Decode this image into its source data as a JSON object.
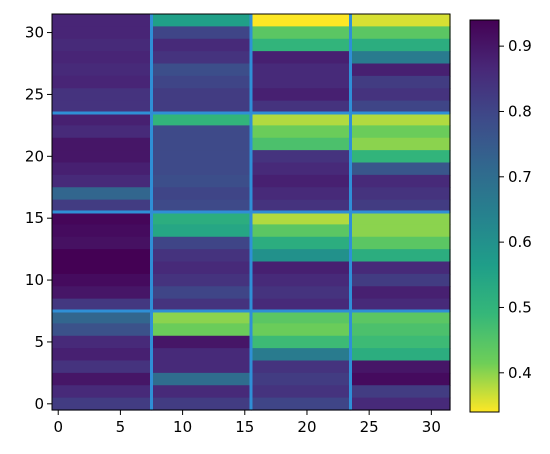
{
  "chart_data": {
    "type": "heatmap",
    "colormap": "viridis_r",
    "nrows": 32,
    "ncols": 32,
    "block_boundaries": [
      0,
      8,
      16,
      24,
      32
    ],
    "grid_lines": true,
    "grid_line_color": "#2f8fd6",
    "xlim": [
      -0.5,
      31.5
    ],
    "ylim": [
      31.5,
      -0.5
    ],
    "xticks": [
      0,
      5,
      10,
      15,
      20,
      25,
      30
    ],
    "yticks": [
      0,
      5,
      10,
      15,
      20,
      25,
      30
    ],
    "xtick_labels": [
      "0",
      "5",
      "10",
      "15",
      "20",
      "25",
      "30"
    ],
    "ytick_labels": [
      "0",
      "5",
      "10",
      "15",
      "20",
      "25",
      "30"
    ],
    "colorbar": {
      "range": [
        0.34,
        0.94
      ],
      "ticks": [
        0.4,
        0.5,
        0.6,
        0.7,
        0.8,
        0.9
      ],
      "tick_labels": [
        "0.4",
        "0.5",
        "0.6",
        "0.7",
        "0.8",
        "0.9"
      ]
    },
    "row_values_by_block_column": [
      [
        0.87,
        0.87,
        0.86,
        0.87,
        0.86,
        0.87,
        0.84,
        0.84,
        0.88,
        0.86,
        0.9,
        0.9,
        0.88,
        0.86,
        0.72,
        0.82,
        0.93,
        0.92,
        0.91,
        0.94,
        0.94,
        0.92,
        0.9,
        0.83,
        0.72,
        0.77,
        0.86,
        0.88,
        0.84,
        0.9,
        0.86,
        0.82
      ],
      [
        0.56,
        0.8,
        0.86,
        0.84,
        0.78,
        0.8,
        0.82,
        0.82,
        0.5,
        0.79,
        0.79,
        0.79,
        0.79,
        0.78,
        0.8,
        0.79,
        0.52,
        0.54,
        0.8,
        0.84,
        0.86,
        0.84,
        0.8,
        0.84,
        0.4,
        0.42,
        0.9,
        0.86,
        0.86,
        0.7,
        0.86,
        0.82
      ],
      [
        0.34,
        0.44,
        0.5,
        0.88,
        0.86,
        0.86,
        0.88,
        0.84,
        0.38,
        0.42,
        0.46,
        0.84,
        0.86,
        0.88,
        0.86,
        0.84,
        0.38,
        0.44,
        0.52,
        0.6,
        0.88,
        0.86,
        0.84,
        0.86,
        0.44,
        0.42,
        0.48,
        0.66,
        0.84,
        0.82,
        0.84,
        0.8
      ],
      [
        0.36,
        0.44,
        0.52,
        0.66,
        0.88,
        0.82,
        0.84,
        0.8,
        0.38,
        0.42,
        0.4,
        0.5,
        0.76,
        0.86,
        0.84,
        0.82,
        0.4,
        0.4,
        0.44,
        0.52,
        0.86,
        0.82,
        0.88,
        0.86,
        0.44,
        0.46,
        0.48,
        0.52,
        0.9,
        0.92,
        0.82,
        0.86
      ]
    ]
  }
}
